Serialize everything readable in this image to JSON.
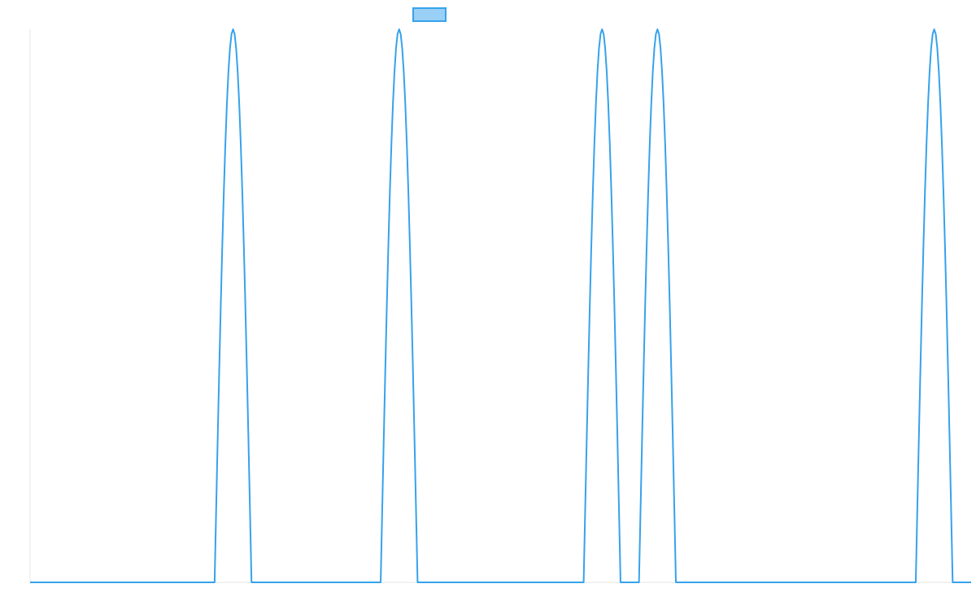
{
  "chart_data": {
    "type": "line",
    "title": "",
    "xlabel": "",
    "ylabel": "",
    "legend": {
      "placement": "top-center",
      "entries": [
        {
          "name": "",
          "color": "#36A2EB",
          "fill": "#9AD0F5"
        }
      ]
    },
    "x_range": [
      0,
      51
    ],
    "y_range": [
      0,
      1
    ],
    "grid": false,
    "series": [
      {
        "name": "",
        "color": "#36A2EB",
        "peaks": [
          {
            "x": 11.0,
            "y": 1,
            "half_width": 1.0
          },
          {
            "x": 20.0,
            "y": 1,
            "half_width": 1.0
          },
          {
            "x": 31.0,
            "y": 1,
            "half_width": 1.0
          },
          {
            "x": 34.0,
            "y": 1,
            "half_width": 1.0
          },
          {
            "x": 49.0,
            "y": 1,
            "half_width": 1.0
          }
        ]
      }
    ]
  }
}
